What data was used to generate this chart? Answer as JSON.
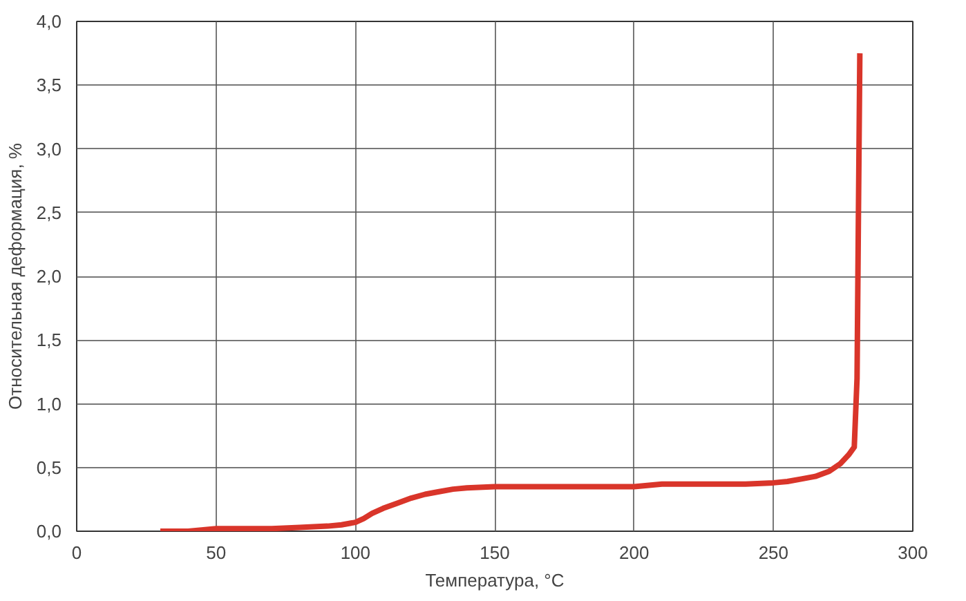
{
  "chart_data": {
    "type": "line",
    "xlabel": "Температура, °C",
    "ylabel": "Относительная деформация, %",
    "x": [
      30,
      40,
      50,
      60,
      70,
      80,
      90,
      95,
      100,
      103,
      106,
      110,
      115,
      120,
      125,
      130,
      135,
      140,
      150,
      160,
      170,
      180,
      190,
      200,
      210,
      220,
      230,
      240,
      250,
      255,
      260,
      265,
      270,
      274,
      277,
      279,
      280,
      280.5,
      281
    ],
    "series": [
      {
        "color": "#d9352a",
        "values": [
          0.0,
          0.0,
          0.02,
          0.02,
          0.02,
          0.03,
          0.04,
          0.05,
          0.07,
          0.1,
          0.14,
          0.18,
          0.22,
          0.26,
          0.29,
          0.31,
          0.33,
          0.34,
          0.35,
          0.35,
          0.35,
          0.35,
          0.35,
          0.35,
          0.37,
          0.37,
          0.37,
          0.37,
          0.38,
          0.39,
          0.41,
          0.43,
          0.47,
          0.53,
          0.6,
          0.66,
          1.2,
          2.5,
          3.75
        ]
      }
    ],
    "xlim": [
      0,
      300
    ],
    "ylim": [
      0,
      4.0
    ],
    "xticks": [
      0,
      50,
      100,
      150,
      200,
      250,
      300
    ],
    "yticks": [
      {
        "value": 0,
        "label": "0,0"
      },
      {
        "value": 0.5,
        "label": "0,5"
      },
      {
        "value": 1.0,
        "label": "1,0"
      },
      {
        "value": 1.5,
        "label": "1,5"
      },
      {
        "value": 2.0,
        "label": "2,0"
      },
      {
        "value": 2.5,
        "label": "2,5"
      },
      {
        "value": 3.0,
        "label": "3,0"
      },
      {
        "value": 3.5,
        "label": "3,5"
      },
      {
        "value": 4.0,
        "label": "4,0"
      }
    ],
    "grid": true,
    "marker": "none",
    "line_style": "solid"
  }
}
